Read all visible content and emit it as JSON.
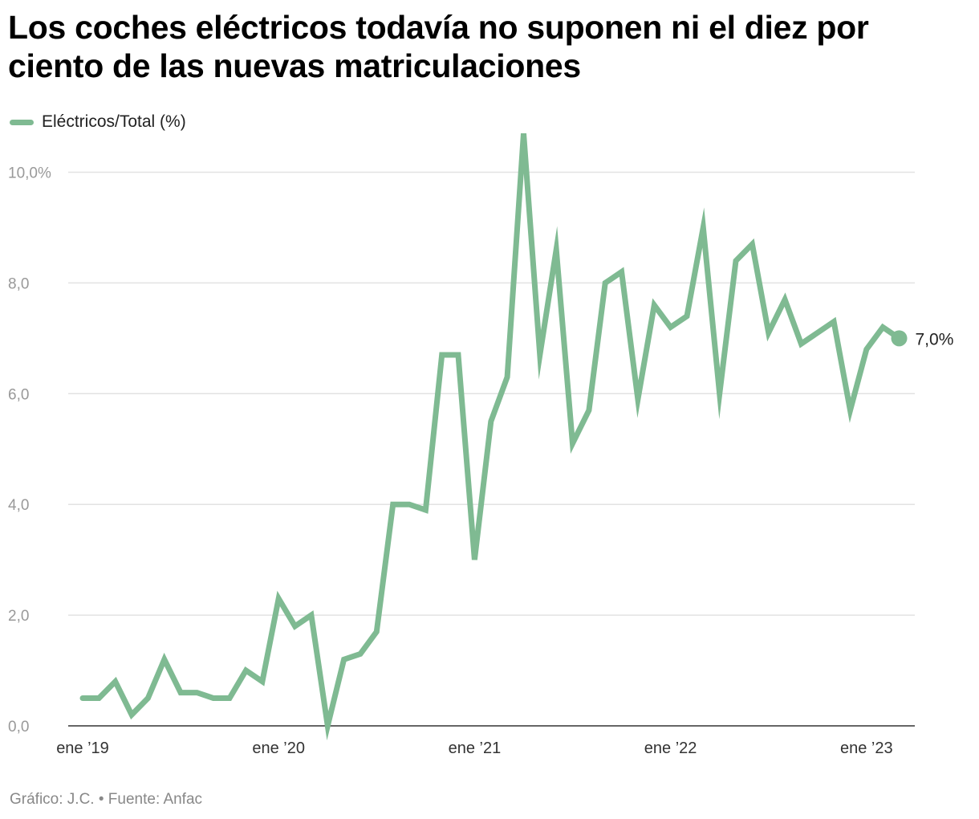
{
  "title": "Los coches eléctricos todavía no suponen ni el diez por ciento de las nuevas matriculaciones",
  "legend": {
    "label": "Eléctricos/Total (%)",
    "color": "#7fba92"
  },
  "footer": "Gráfico: J.C. • Fuente: Anfac",
  "chart_data": {
    "type": "line",
    "title": "Los coches eléctricos todavía no suponen ni el diez por ciento de las nuevas matriculaciones",
    "xlabel": "",
    "ylabel": "",
    "ylim": [
      0,
      10.5
    ],
    "yticks": [
      0,
      2,
      4,
      6,
      8,
      10
    ],
    "ytick_labels": [
      "0,0",
      "2,0",
      "4,0",
      "6,0",
      "8,0",
      "10,0%"
    ],
    "xticks": [
      0,
      12,
      24,
      36,
      48
    ],
    "xtick_labels": [
      "ene ’19",
      "ene ’20",
      "ene ’21",
      "ene ’22",
      "ene ’23"
    ],
    "end_label": "7,0%",
    "series": [
      {
        "name": "Eléctricos/Total (%)",
        "color": "#7fba92",
        "values": [
          0.5,
          0.5,
          0.8,
          0.2,
          0.5,
          1.2,
          0.6,
          0.6,
          0.5,
          0.5,
          1.0,
          0.8,
          2.3,
          1.8,
          2.0,
          0.0,
          1.2,
          1.3,
          1.7,
          4.0,
          4.0,
          3.9,
          6.7,
          6.7,
          3.0,
          5.5,
          6.3,
          10.7,
          6.7,
          8.6,
          5.1,
          5.7,
          8.0,
          8.2,
          5.9,
          7.6,
          7.2,
          7.4,
          9.0,
          6.0,
          8.4,
          8.7,
          7.1,
          7.7,
          6.9,
          7.1,
          7.3,
          5.7,
          6.8,
          7.2,
          7.0
        ]
      }
    ]
  }
}
